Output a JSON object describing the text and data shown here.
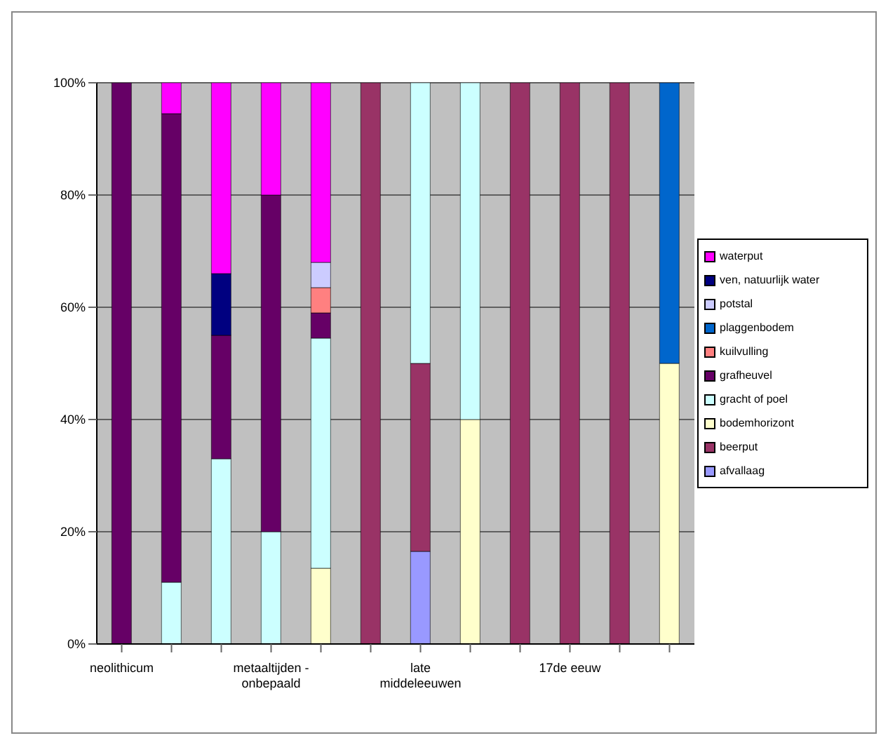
{
  "chart_data": {
    "type": "bar",
    "stacked": true,
    "categories": [
      "neolithicum",
      null,
      null,
      "metaaltijden - onbepaald",
      null,
      null,
      "late middeleeuwen",
      null,
      null,
      "17de eeuw",
      null,
      null
    ],
    "series": [
      {
        "name": "afvallaag",
        "color": "#9999ff",
        "values": [
          0,
          0,
          0,
          0,
          0,
          0,
          16.5,
          0,
          0,
          0,
          0,
          0
        ]
      },
      {
        "name": "beerput",
        "color": "#993366",
        "values": [
          0,
          0,
          0,
          0,
          0,
          100,
          33.5,
          0,
          100,
          100,
          100,
          0
        ]
      },
      {
        "name": "bodemhorizont",
        "color": "#ffffcc",
        "values": [
          0,
          0,
          0,
          0,
          13.5,
          0,
          0,
          40,
          0,
          0,
          0,
          50
        ]
      },
      {
        "name": "gracht of poel",
        "color": "#ccffff",
        "values": [
          0,
          11,
          33,
          20,
          41,
          0,
          50,
          60,
          0,
          0,
          0,
          0
        ]
      },
      {
        "name": "grafheuvel",
        "color": "#660066",
        "values": [
          100,
          83.5,
          22,
          60,
          4.5,
          0,
          0,
          0,
          0,
          0,
          0,
          0
        ]
      },
      {
        "name": "kuilvulling",
        "color": "#ff8080",
        "values": [
          0,
          0,
          0,
          0,
          4.5,
          0,
          0,
          0,
          0,
          0,
          0,
          0
        ]
      },
      {
        "name": "plaggenbodem",
        "color": "#0066cc",
        "values": [
          0,
          0,
          0,
          0,
          0,
          0,
          0,
          0,
          0,
          0,
          0,
          50
        ]
      },
      {
        "name": "potstal",
        "color": "#ccccff",
        "values": [
          0,
          0,
          0,
          0,
          4.5,
          0,
          0,
          0,
          0,
          0,
          0,
          0
        ]
      },
      {
        "name": "ven, natuurlijk water",
        "color": "#000080",
        "values": [
          0,
          0,
          11,
          0,
          0,
          0,
          0,
          0,
          0,
          0,
          0,
          0
        ]
      },
      {
        "name": "waterput",
        "color": "#ff00ff",
        "values": [
          0,
          5.5,
          34,
          20,
          32,
          0,
          0,
          0,
          0,
          0,
          0,
          0
        ]
      }
    ],
    "ylim": [
      0,
      100
    ],
    "yticks": [
      {
        "value": 0,
        "label": "0%"
      },
      {
        "value": 20,
        "label": "20%"
      },
      {
        "value": 40,
        "label": "40%"
      },
      {
        "value": 60,
        "label": "60%"
      },
      {
        "value": 80,
        "label": "80%"
      },
      {
        "value": 100,
        "label": "100%"
      }
    ],
    "grid": "y",
    "legend": "right"
  }
}
